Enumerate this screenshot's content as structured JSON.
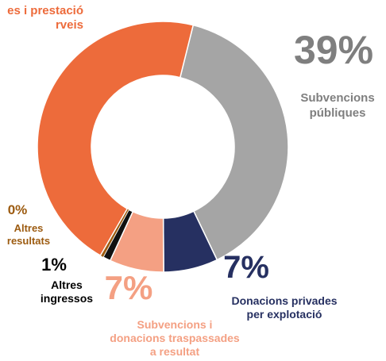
{
  "chart_data": {
    "type": "donut",
    "series": [
      {
        "label_lines": [
          "Subvencions",
          "públiques"
        ],
        "value": 39,
        "value_label": "39%",
        "color": "#a5a5a5",
        "text_color": "#7f7f7f"
      },
      {
        "label_lines": [
          "Donacions privades",
          "per explotació"
        ],
        "value": 7,
        "value_label": "7%",
        "color": "#263061",
        "text_color": "#263061"
      },
      {
        "label_lines": [
          "Subvencions i",
          "donacions traspassades",
          "a resultat"
        ],
        "value": 7,
        "value_label": "7%",
        "color": "#f4a083",
        "text_color": "#f4a083"
      },
      {
        "label_lines": [
          "Altres",
          "ingressos"
        ],
        "value": 1,
        "value_label": "1%",
        "color": "#111111",
        "text_color": "#000000"
      },
      {
        "label_lines": [
          "Altres",
          "resultats"
        ],
        "value": 0.4,
        "value_label": "0%",
        "color": "#9c5b10",
        "text_color": "#9c5b10"
      },
      {
        "label_lines": [
          "es i prestació",
          "rveis"
        ],
        "value": 45.6,
        "color": "#ed6b3b",
        "text_color": "#ed6b3b"
      }
    ]
  }
}
